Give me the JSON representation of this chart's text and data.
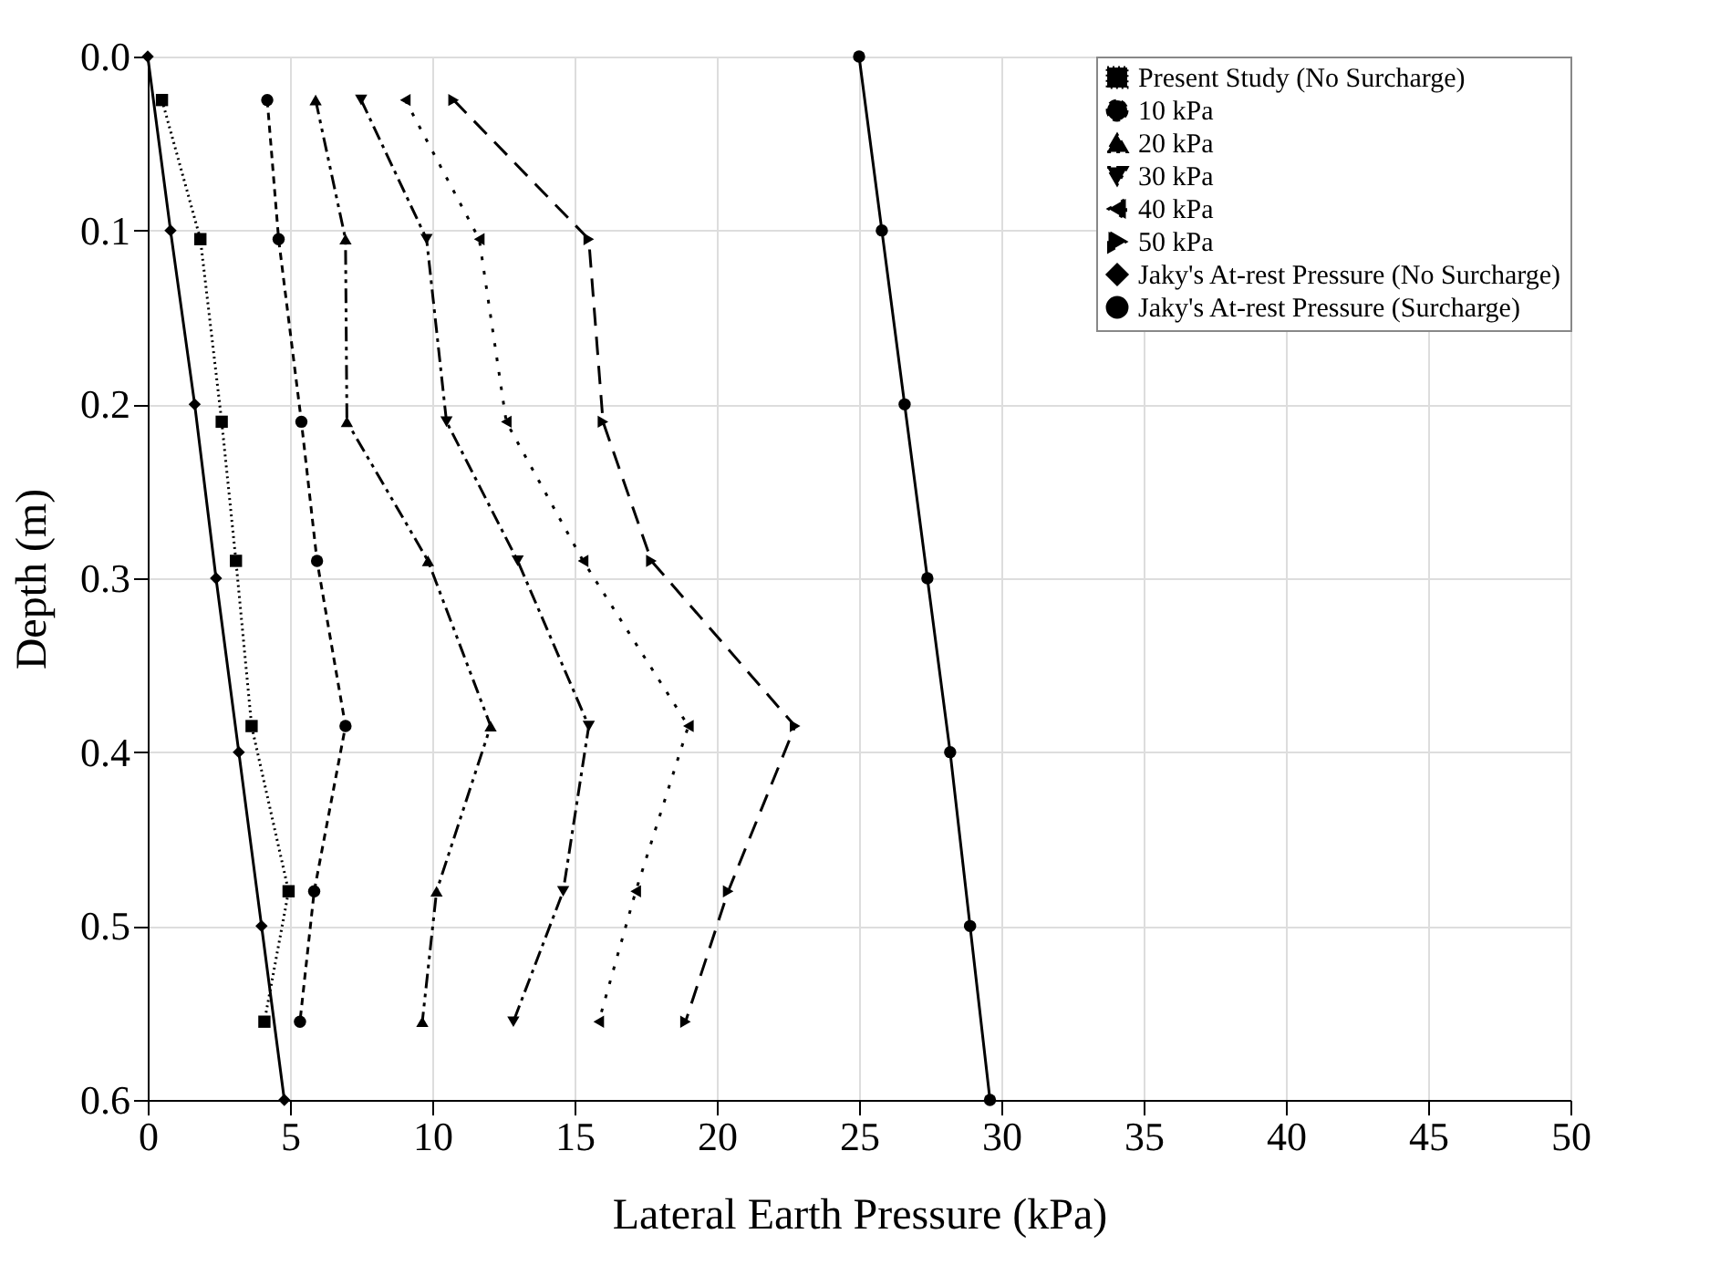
{
  "chart_data": {
    "type": "line",
    "xlabel": "Lateral Earth Pressure (kPa)",
    "ylabel": "Depth (m)",
    "xlim": [
      0,
      50
    ],
    "xticks": [
      0,
      5,
      10,
      15,
      20,
      25,
      30,
      35,
      40,
      45,
      50
    ],
    "ylim": [
      0.6,
      0.0
    ],
    "yticks": [
      {
        "value": 0,
        "label": "0.0"
      },
      {
        "value": 0.1,
        "label": "0.1"
      },
      {
        "value": 0.2,
        "label": "0.2"
      },
      {
        "value": 0.3,
        "label": "0.3"
      },
      {
        "value": 0.4,
        "label": "0.4"
      },
      {
        "value": 0.5,
        "label": "0.5"
      },
      {
        "value": 0.6,
        "label": "0.6"
      }
    ],
    "grid": true,
    "legend": "top right",
    "series": [
      {
        "name": "Present Study (No Surcharge)",
        "color": "#000000",
        "marker": "square",
        "line_style": "dotted",
        "x": [
          0.5,
          1.85,
          2.6,
          3.1,
          3.65,
          4.95,
          4.1
        ],
        "values": [
          0.025,
          0.105,
          0.21,
          0.29,
          0.385,
          0.48,
          0.555
        ]
      },
      {
        "name": "10 kPa",
        "color": "#000000",
        "marker": "circle",
        "line_style": "dashed",
        "x": [
          4.2,
          4.6,
          5.4,
          5.95,
          6.95,
          5.85,
          5.35
        ],
        "values": [
          0.025,
          0.105,
          0.21,
          0.29,
          0.385,
          0.48,
          0.555
        ]
      },
      {
        "name": "20 kPa",
        "color": "#000000",
        "marker": "triangle-up",
        "line_style": "dashdotdot",
        "x": [
          5.9,
          6.95,
          7.0,
          9.85,
          12.05,
          10.15,
          9.65
        ],
        "values": [
          0.025,
          0.105,
          0.21,
          0.29,
          0.385,
          0.48,
          0.555
        ]
      },
      {
        "name": "30 kPa",
        "color": "#000000",
        "marker": "triangle-down",
        "line_style": "dashdot",
        "x": [
          7.5,
          9.8,
          10.5,
          13.0,
          15.5,
          14.6,
          12.85
        ],
        "values": [
          0.025,
          0.105,
          0.21,
          0.29,
          0.385,
          0.48,
          0.555
        ]
      },
      {
        "name": "40 kPa",
        "color": "#000000",
        "marker": "triangle-left",
        "line_style": "sparsedot",
        "x": [
          9.05,
          11.65,
          12.6,
          15.3,
          19.0,
          17.15,
          15.85
        ],
        "values": [
          0.025,
          0.105,
          0.21,
          0.29,
          0.385,
          0.48,
          0.555
        ]
      },
      {
        "name": "50 kPa",
        "color": "#000000",
        "marker": "triangle-right",
        "line_style": "longdash",
        "x": [
          10.75,
          15.5,
          16.0,
          17.7,
          22.75,
          20.4,
          18.9
        ],
        "values": [
          0.025,
          0.105,
          0.21,
          0.29,
          0.385,
          0.48,
          0.555
        ]
      },
      {
        "name": "Jaky's At-rest Pressure (No Surcharge)",
        "color": "#000000",
        "marker": "diamond",
        "line_style": "solid",
        "x": [
          0,
          0.8,
          1.65,
          2.4,
          3.2,
          4.0,
          4.8
        ],
        "values": [
          0.0,
          0.1,
          0.2,
          0.3,
          0.4,
          0.5,
          0.6
        ]
      },
      {
        "name": "Jaky's At-rest Pressure (Surcharge)",
        "color": "#000000",
        "marker": "circle",
        "line_style": "solid",
        "x": [
          25,
          25.8,
          26.6,
          27.4,
          28.2,
          28.9,
          29.6
        ],
        "values": [
          0.0,
          0.1,
          0.2,
          0.3,
          0.4,
          0.5,
          0.6
        ]
      }
    ]
  }
}
